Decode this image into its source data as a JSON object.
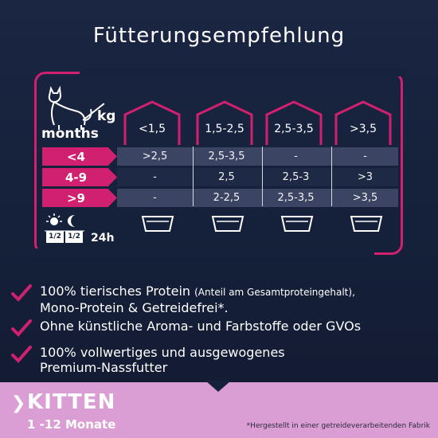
{
  "title": "Fütterungsempfehlung",
  "table": {
    "kg_label": "kg",
    "months_label": "months",
    "columns": [
      "<1,5",
      "1,5-2,5",
      "2,5-3,5",
      ">3,5"
    ],
    "rows": [
      {
        "label": "<4",
        "cells": [
          ">2,5",
          "2,5-3,5",
          "-",
          "-"
        ]
      },
      {
        "label": "4-9",
        "cells": [
          "-",
          "2,5",
          "2,5-3",
          ">3"
        ]
      },
      {
        "label": ">9",
        "cells": [
          "-",
          "2-2,5",
          "2,5-3,5",
          ">3,5"
        ]
      }
    ],
    "split_left": "1/2",
    "split_right": "1/2",
    "hours": "24h"
  },
  "bullets": [
    {
      "main": "100% tierisches Protein ",
      "small": "(Anteil am Gesamtproteingehalt),",
      "line2": "Mono-Protein & Getreidefrei*."
    },
    {
      "main": "Ohne künstliche Aroma- und Farbstoffe oder GVOs",
      "small": "",
      "line2": ""
    },
    {
      "main": "100% vollwertiges und ausgewogenes",
      "small": "",
      "line2": "Premium-Nassfutter"
    }
  ],
  "footer": {
    "chevron": "❯",
    "title": "KITTEN",
    "subtitle": "1 -12 Monate",
    "note": "*Hergestellt in einer getreideverarbeitenden Fabrik"
  },
  "colors": {
    "accent": "#d1206f",
    "background": "#15203a",
    "band": "#da9ed4"
  }
}
